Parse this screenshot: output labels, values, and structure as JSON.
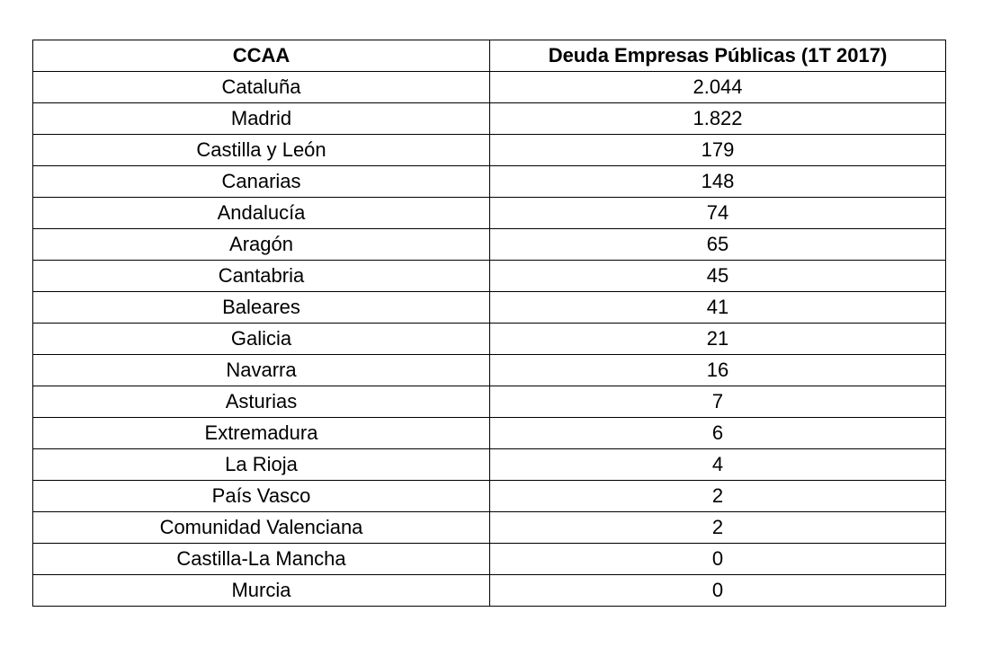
{
  "table": {
    "headers": [
      "CCAA",
      "Deuda Empresas Públicas (1T 2017)"
    ],
    "rows": [
      [
        "Cataluña",
        "2.044"
      ],
      [
        "Madrid",
        "1.822"
      ],
      [
        "Castilla y León",
        "179"
      ],
      [
        "Canarias",
        "148"
      ],
      [
        "Andalucía",
        "74"
      ],
      [
        "Aragón",
        "65"
      ],
      [
        "Cantabria",
        "45"
      ],
      [
        "Baleares",
        "41"
      ],
      [
        "Galicia",
        "21"
      ],
      [
        "Navarra",
        "16"
      ],
      [
        "Asturias",
        "7"
      ],
      [
        "Extremadura",
        "6"
      ],
      [
        "La Rioja",
        "4"
      ],
      [
        "País Vasco",
        "2"
      ],
      [
        "Comunidad Valenciana",
        "2"
      ],
      [
        "Castilla-La Mancha",
        "0"
      ],
      [
        "Murcia",
        "0"
      ]
    ]
  }
}
